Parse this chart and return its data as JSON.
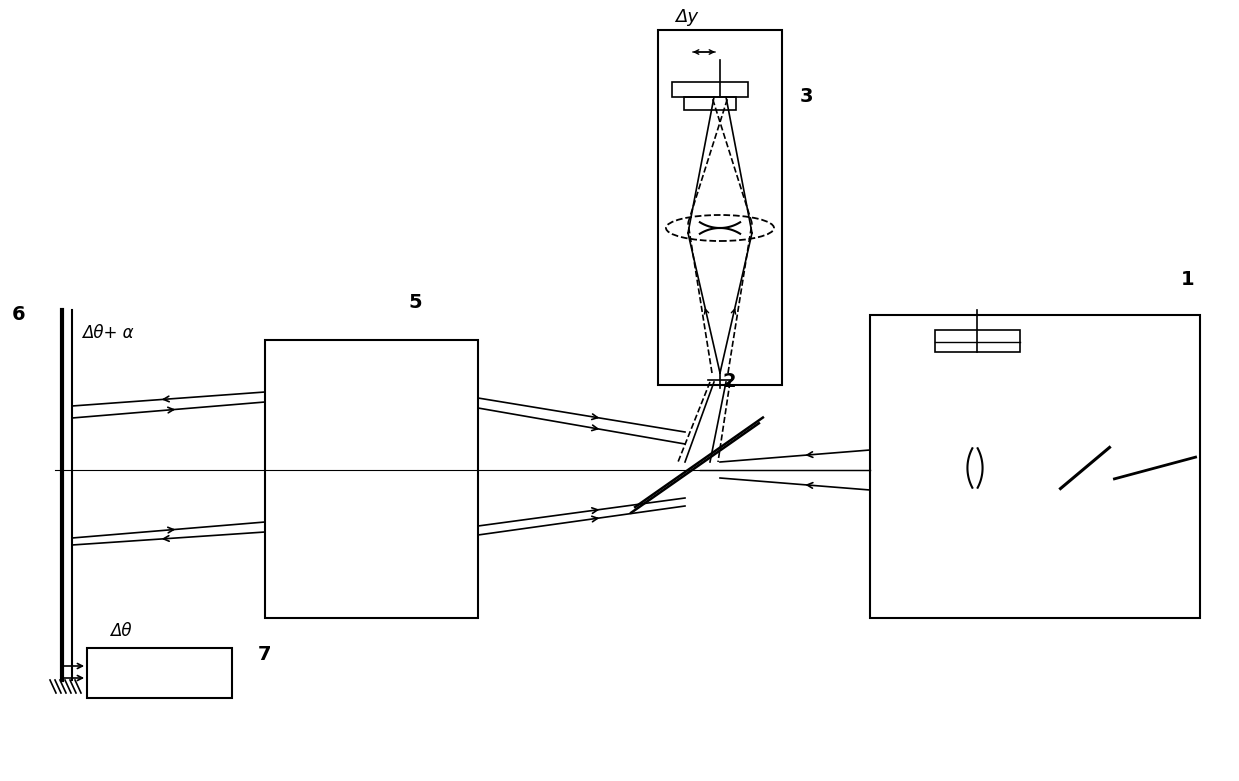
{
  "bg_color": "#ffffff",
  "line_color": "#000000",
  "figsize": [
    12.39,
    7.81
  ],
  "dpi": 100,
  "labels": {
    "delta_theta_alpha": "Δθ+ α",
    "delta_theta": "Δθ",
    "delta_y": "Δy",
    "num1": "1",
    "num2": "2",
    "num3": "3",
    "num5": "5",
    "num6": "6",
    "num7": "7"
  }
}
